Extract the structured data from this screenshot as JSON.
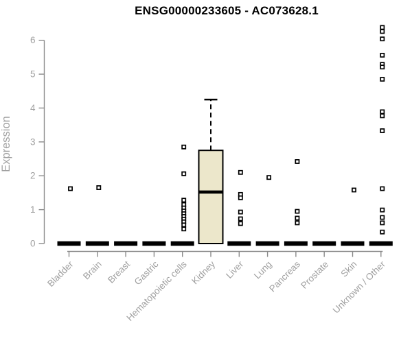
{
  "chart_data": {
    "type": "boxplot",
    "title": "ENSG00000233605 - AC073628.1",
    "ylabel": "Expression",
    "xlabel": "",
    "ylim": [
      0,
      6.6
    ],
    "yticks": [
      0,
      1,
      2,
      3,
      4,
      5,
      6
    ],
    "grid": false,
    "legend": null,
    "categories": [
      "Bladder",
      "Brain",
      "Breast",
      "Gastric",
      "Hematopoietic cells",
      "Kidney",
      "Liver",
      "Lung",
      "Pancreas",
      "Prostate",
      "Skin",
      "Unknown / Other"
    ],
    "boxes": [
      {
        "category": "Bladder",
        "q1": 0,
        "median": 0,
        "q3": 0,
        "whisker_low": 0,
        "whisker_high": 0,
        "outliers": [
          1.62
        ]
      },
      {
        "category": "Brain",
        "q1": 0,
        "median": 0,
        "q3": 0,
        "whisker_low": 0,
        "whisker_high": 0,
        "outliers": [
          1.65
        ]
      },
      {
        "category": "Breast",
        "q1": 0,
        "median": 0,
        "q3": 0,
        "whisker_low": 0,
        "whisker_high": 0,
        "outliers": []
      },
      {
        "category": "Gastric",
        "q1": 0,
        "median": 0,
        "q3": 0,
        "whisker_low": 0,
        "whisker_high": 0,
        "outliers": []
      },
      {
        "category": "Hematopoietic cells",
        "q1": 0,
        "median": 0,
        "q3": 0,
        "whisker_low": 0,
        "whisker_high": 0,
        "outliers": [
          2.85,
          2.06,
          1.28,
          1.15,
          1.05,
          0.96,
          0.88,
          0.8,
          0.72,
          0.64,
          0.55,
          0.43
        ]
      },
      {
        "category": "Kidney",
        "q1": 0,
        "median": 1.52,
        "q3": 2.75,
        "whisker_low": 0,
        "whisker_high": 4.25,
        "outliers": []
      },
      {
        "category": "Liver",
        "q1": 0,
        "median": 0,
        "q3": 0,
        "whisker_low": 0,
        "whisker_high": 0,
        "outliers": [
          2.1,
          1.45,
          1.35,
          0.93,
          0.73,
          0.59
        ]
      },
      {
        "category": "Lung",
        "q1": 0,
        "median": 0,
        "q3": 0,
        "whisker_low": 0,
        "whisker_high": 0,
        "outliers": [
          1.95
        ]
      },
      {
        "category": "Pancreas",
        "q1": 0,
        "median": 0,
        "q3": 0,
        "whisker_low": 0,
        "whisker_high": 0,
        "outliers": [
          2.42,
          0.95,
          0.75,
          0.61
        ]
      },
      {
        "category": "Prostate",
        "q1": 0,
        "median": 0,
        "q3": 0,
        "whisker_low": 0,
        "whisker_high": 0,
        "outliers": []
      },
      {
        "category": "Skin",
        "q1": 0,
        "median": 0,
        "q3": 0,
        "whisker_low": 0,
        "whisker_high": 0,
        "outliers": [
          1.58
        ]
      },
      {
        "category": "Unknown / Other",
        "q1": 0,
        "median": 0,
        "q3": 0,
        "whisker_low": 0,
        "whisker_high": 0,
        "outliers": [
          6.38,
          6.26,
          6.04,
          5.56,
          5.29,
          5.21,
          4.85,
          3.89,
          3.77,
          3.33,
          1.62,
          0.99,
          0.77,
          0.61,
          0.34
        ]
      }
    ],
    "colors": {
      "box_fill": "#ece7cb",
      "box_border": "#000000",
      "median": "#000000",
      "whisker": "#000000",
      "outlier": "#000000",
      "axis": "#8a8a8a",
      "tick_label": "#a0a0a0",
      "title": "#000000"
    },
    "outlier_marker": "open-square",
    "legend_position": "none"
  }
}
